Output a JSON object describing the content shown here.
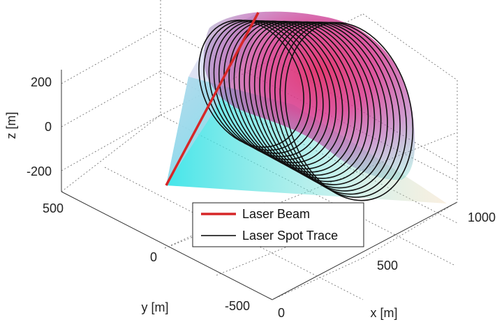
{
  "chart_data": {
    "type": "3d-surface-with-lines",
    "title": "",
    "axes": {
      "x": {
        "label": "x [m]",
        "ticks": [
          "0",
          "500",
          "1000"
        ],
        "range": [
          0,
          1000
        ]
      },
      "y": {
        "label": "y [m]",
        "ticks": [
          "-500",
          "0",
          "500"
        ],
        "range": [
          -500,
          500
        ]
      },
      "z": {
        "label": "z [m]",
        "ticks": [
          "-200",
          "0",
          "200"
        ],
        "range": [
          -250,
          250
        ]
      }
    },
    "grid": true,
    "legend": {
      "placement": "bottom-center",
      "entries": [
        {
          "label": "Laser Beam",
          "color": "#d62728"
        },
        {
          "label": "Laser Spot Trace",
          "color": "#000000"
        }
      ]
    },
    "series": [
      {
        "name": "Laser Beam",
        "kind": "line",
        "color": "#d62728"
      },
      {
        "name": "Laser Spot Trace",
        "kind": "line",
        "color": "#000000",
        "rings": 18
      }
    ],
    "surface_colors": [
      "#33e6e6",
      "#e63399",
      "#ffcc99"
    ]
  }
}
